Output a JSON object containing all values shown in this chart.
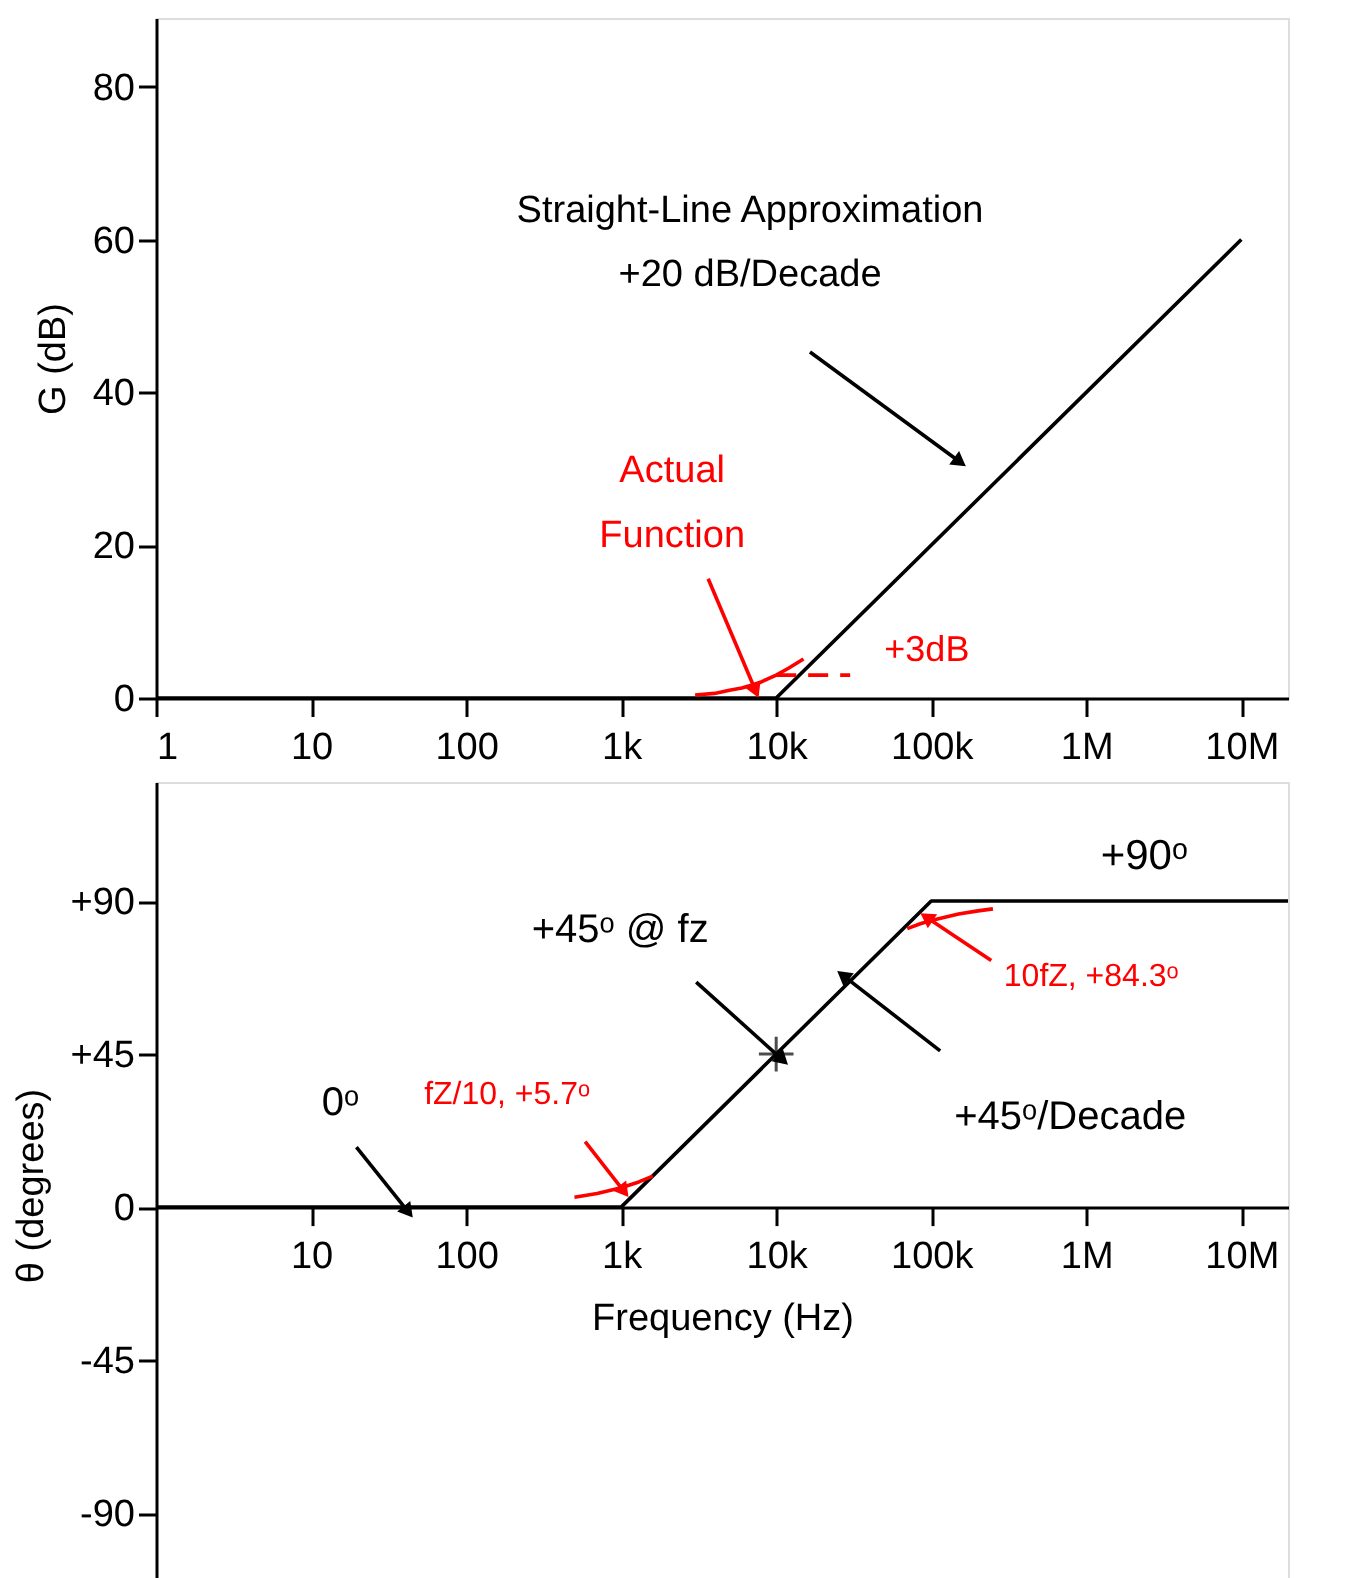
{
  "chart_data": [
    {
      "type": "line",
      "ylabel": "G (dB)",
      "xlim": [
        1,
        20000000
      ],
      "ylim": [
        0,
        89
      ],
      "log": "x",
      "grid": false,
      "marker": "none",
      "xticks": [
        1,
        10,
        100,
        {
          "value": 1000,
          "label": "1k"
        },
        {
          "value": 10000,
          "label": "10k"
        },
        {
          "value": 100000,
          "label": "100k"
        },
        {
          "value": 1000000,
          "label": "1M"
        },
        {
          "value": 10000000,
          "label": "10M"
        }
      ],
      "yticks": [
        0,
        20,
        40,
        60,
        80
      ],
      "series": [
        {
          "color": "#000000",
          "x": [
            1,
            10000,
            10000000
          ],
          "values": [
            0,
            0,
            60
          ]
        },
        {
          "color": "#ff0000",
          "x": [
            3000,
            4000,
            5000,
            6000,
            7000,
            8000,
            10000,
            12000,
            15000
          ],
          "values": [
            0.4,
            0.6,
            1.0,
            1.3,
            1.7,
            2.1,
            3.0,
            3.9,
            5.1
          ]
        },
        {
          "color": "#ff0000",
          "line_style": "dashed",
          "x": [
            10000,
            30000
          ],
          "values": [
            3,
            3
          ]
        }
      ],
      "annotations": [
        "Straight-Line Approximation\n+20 dB/Decade",
        {
          "text": "Actual\nFunction",
          "x": 7000,
          "y": 2
        },
        {
          "text": "+3dB",
          "x": 20000,
          "y": 3
        }
      ]
    },
    {
      "type": "line",
      "ylabel": "θ (degrees)",
      "xlabel": "Frequency (Hz)",
      "xlim": [
        1,
        20000000
      ],
      "ylim": [
        -112,
        125
      ],
      "log": "x",
      "grid": false,
      "marker": "none",
      "xticks": [
        10,
        100,
        {
          "value": 1000,
          "label": "1k"
        },
        {
          "value": 10000,
          "label": "10k"
        },
        {
          "value": 100000,
          "label": "100k"
        },
        {
          "value": 1000000,
          "label": "1M"
        },
        {
          "value": 10000000,
          "label": "10M"
        }
      ],
      "yticks": [
        {
          "value": 90,
          "label": "+90"
        },
        {
          "value": 45,
          "label": "+45"
        },
        0,
        -45,
        -90
      ],
      "series": [
        {
          "color": "#000000",
          "x": [
            1,
            1000,
            100000,
            20000000
          ],
          "values": [
            0,
            0,
            90,
            90
          ]
        },
        {
          "color": "#ff0000",
          "x": [
            500,
            700,
            1000,
            1300,
            1600
          ],
          "values": [
            2.9,
            4.0,
            5.7,
            7.4,
            9.1
          ]
        },
        {
          "color": "#ff0000",
          "x": [
            70000,
            85000,
            100000,
            150000,
            200000,
            250000
          ],
          "values": [
            81.9,
            83.3,
            84.3,
            86.2,
            87.1,
            87.7
          ]
        },
        {
          "type": "scatter",
          "marker": "cross",
          "color": "#000000",
          "x": [
            10000
          ],
          "values": [
            45
          ]
        }
      ],
      "annotations": [
        {
          "text": "0ᵒ",
          "x": 40,
          "y": 0
        },
        {
          "text": "fZ/10, +5.7ᵒ",
          "x": 1000,
          "y": 5.7
        },
        {
          "text": "+45ᵒ @ fz",
          "x": 10000,
          "y": 45
        },
        {
          "text": "+45ᵒ/Decade",
          "x": 30000,
          "y": 66.5
        },
        {
          "text": "10fZ, +84.3ᵒ",
          "x": 100000,
          "y": 84.3
        },
        {
          "text": "+90ᵒ",
          "x": 1000000,
          "y": 90
        }
      ]
    }
  ]
}
